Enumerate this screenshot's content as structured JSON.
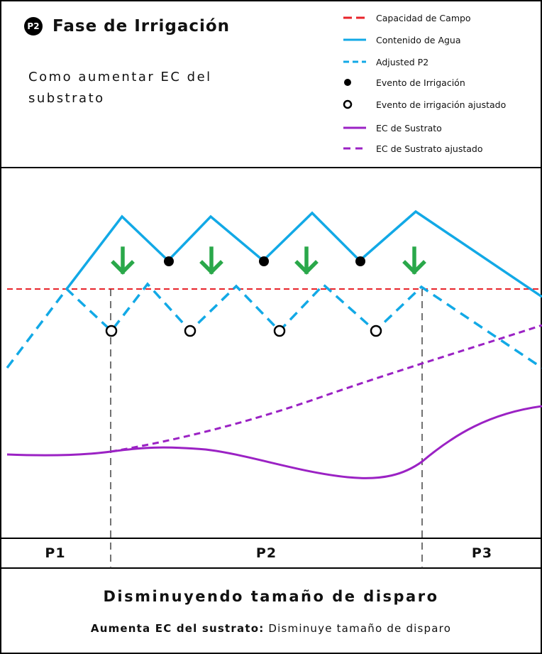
{
  "header": {
    "badge": "P2",
    "title": "Fase de Irrigación",
    "subtitle": "Como aumentar EC del substrato"
  },
  "legend": [
    {
      "label": "Capacidad de Campo",
      "color": "#e8232a",
      "style": "dashed-line"
    },
    {
      "label": "Contenido de Agua",
      "color": "#12a9e6",
      "style": "solid-line"
    },
    {
      "label": "Adjusted P2",
      "color": "#12a9e6",
      "style": "dashed-line"
    },
    {
      "label": "Evento de Irrigación",
      "color": "#000000",
      "style": "filled-dot"
    },
    {
      "label": "Evento de irrigación ajustado",
      "color": "#000000",
      "style": "open-dot"
    },
    {
      "label": "EC de Sustrato",
      "color": "#9b22c4",
      "style": "solid-line"
    },
    {
      "label": "EC de Sustrato ajustado",
      "color": "#9b22c4",
      "style": "dashed-line"
    }
  ],
  "phases": [
    "P1",
    "P2",
    "P3"
  ],
  "footer": {
    "title": "Disminuyendo tamaño de disparo",
    "bold_part": "Aumenta EC del sustrato:",
    "rest": "Disminuye tamaño de disparo"
  },
  "colors": {
    "field_capacity": "#e8232a",
    "water": "#12a9e6",
    "ec": "#9b22c4",
    "arrow": "#2aa84a",
    "guide": "#444444"
  },
  "icons": {
    "down_arrow": "arrow-down-icon"
  }
}
